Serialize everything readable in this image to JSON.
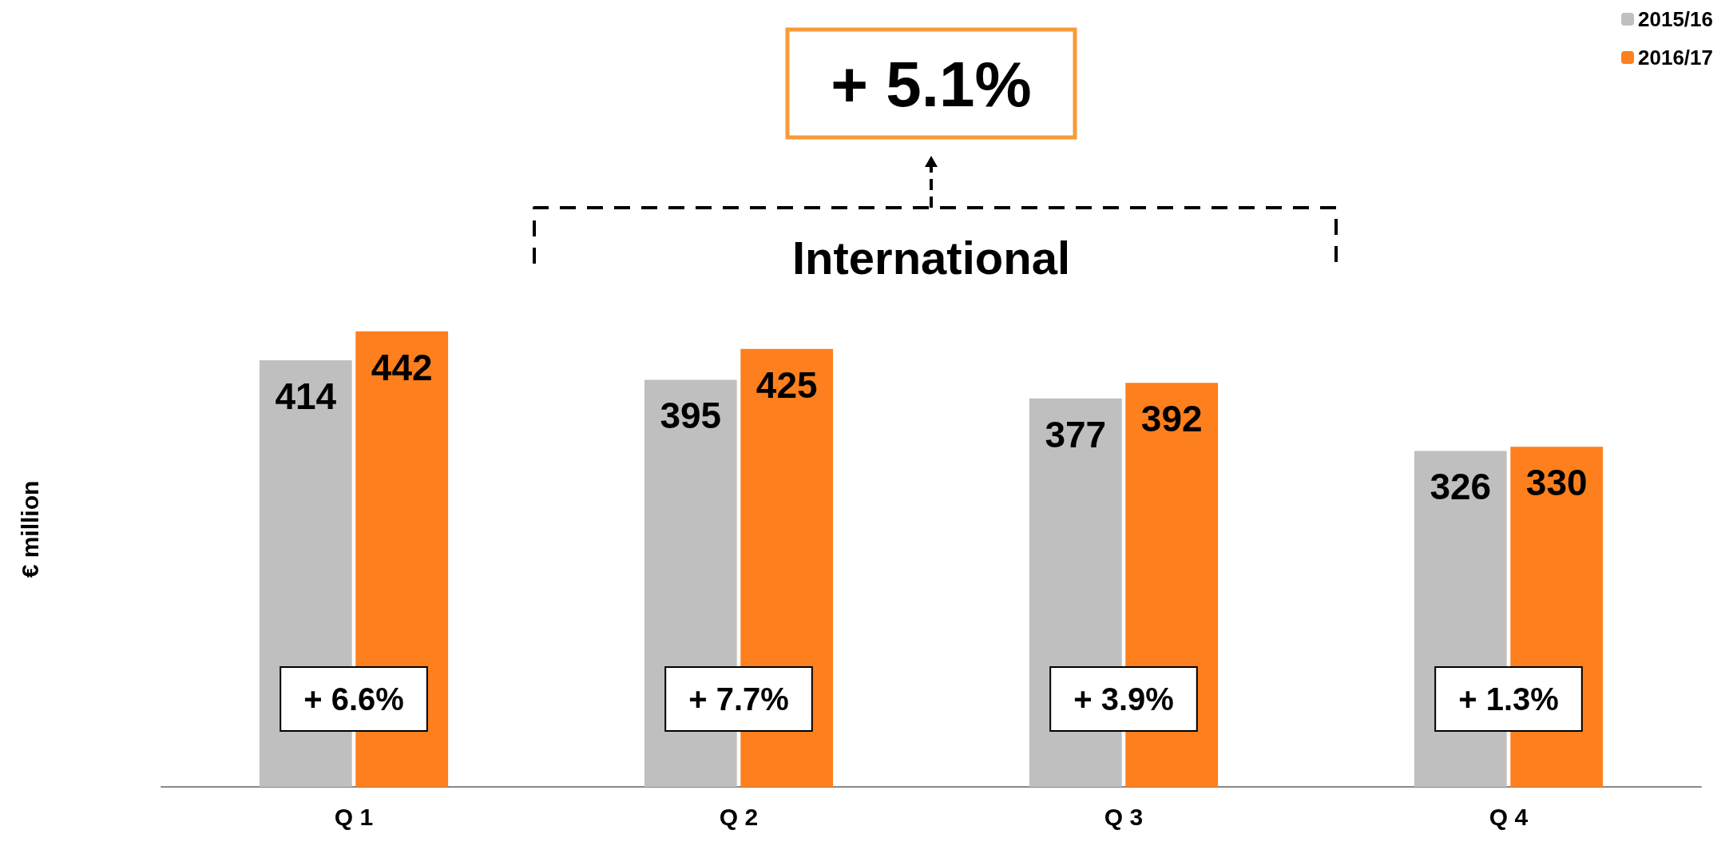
{
  "chart_data": {
    "type": "bar",
    "ylabel": "€ million",
    "categories": [
      "Q 1",
      "Q 2",
      "Q 3",
      "Q 4"
    ],
    "series": [
      {
        "name": "2015/16",
        "color": "#bfbfbf",
        "values": [
          414,
          395,
          377,
          326
        ]
      },
      {
        "name": "2016/17",
        "color": "#fd7f1e",
        "values": [
          442,
          425,
          392,
          330
        ]
      }
    ],
    "data_labels": true,
    "legend": "top right",
    "grid": false,
    "annotations": [
      "+ 5.1%",
      "International",
      "+ 6.6%",
      "+ 7.7%",
      "+ 3.9%",
      "+ 1.3%"
    ]
  }
}
